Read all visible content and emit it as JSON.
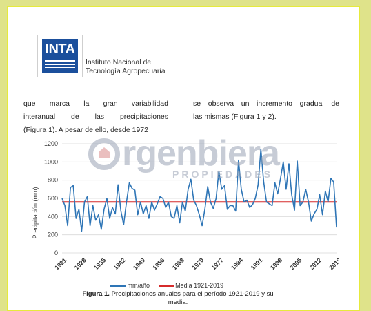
{
  "header": {
    "logo_text": "INTA",
    "institution_line1": "Instituto Nacional de",
    "institution_line2": "Tecnología Agropecuaria"
  },
  "body_text": {
    "left_lines": [
      "que marca la gran variabilidad",
      "interanual de las precipitaciones",
      "(Figura 1). A pesar de ello, desde 1972"
    ],
    "right_lines": [
      "se observa un incremento gradual de",
      "las mismas (Figura 1 y 2)."
    ]
  },
  "watermark": {
    "main": "rgenbiera",
    "sub": "PROPIEDADES"
  },
  "caption": {
    "label": "Figura 1.",
    "text": " Precipitaciones anuales para el período 1921-2019 y su",
    "text2": "media."
  },
  "chart_data": {
    "type": "line",
    "ylabel": "Precipitación (mm)",
    "xlabel": "",
    "ylim": [
      0,
      1200
    ],
    "yticks": [
      0,
      200,
      400,
      600,
      800,
      1000,
      1200
    ],
    "xticks": [
      1921,
      1928,
      1935,
      1942,
      1949,
      1956,
      1963,
      1970,
      1977,
      1984,
      1991,
      1998,
      2005,
      2012,
      2019
    ],
    "grid": true,
    "legend_placement": "bottom",
    "series": [
      {
        "name": "mm/año",
        "color": "#2e75b6",
        "x_start": 1921,
        "values": [
          600,
          520,
          300,
          720,
          740,
          380,
          480,
          240,
          560,
          620,
          300,
          520,
          360,
          420,
          260,
          480,
          600,
          380,
          500,
          430,
          750,
          460,
          310,
          560,
          770,
          710,
          690,
          420,
          560,
          430,
          520,
          380,
          560,
          470,
          540,
          620,
          600,
          500,
          560,
          400,
          380,
          520,
          330,
          560,
          460,
          700,
          810,
          580,
          520,
          420,
          300,
          480,
          730,
          560,
          490,
          600,
          900,
          700,
          740,
          480,
          520,
          520,
          460,
          1020,
          700,
          560,
          580,
          500,
          530,
          600,
          750,
          1140,
          780,
          560,
          540,
          520,
          770,
          650,
          820,
          1000,
          700,
          980,
          640,
          470,
          1010,
          520,
          560,
          700,
          560,
          350,
          430,
          480,
          640,
          420,
          680,
          560,
          820,
          780,
          280
        ]
      },
      {
        "name": "Media 1921-2019",
        "color": "#d62b2b",
        "values": [
          560
        ]
      }
    ]
  }
}
